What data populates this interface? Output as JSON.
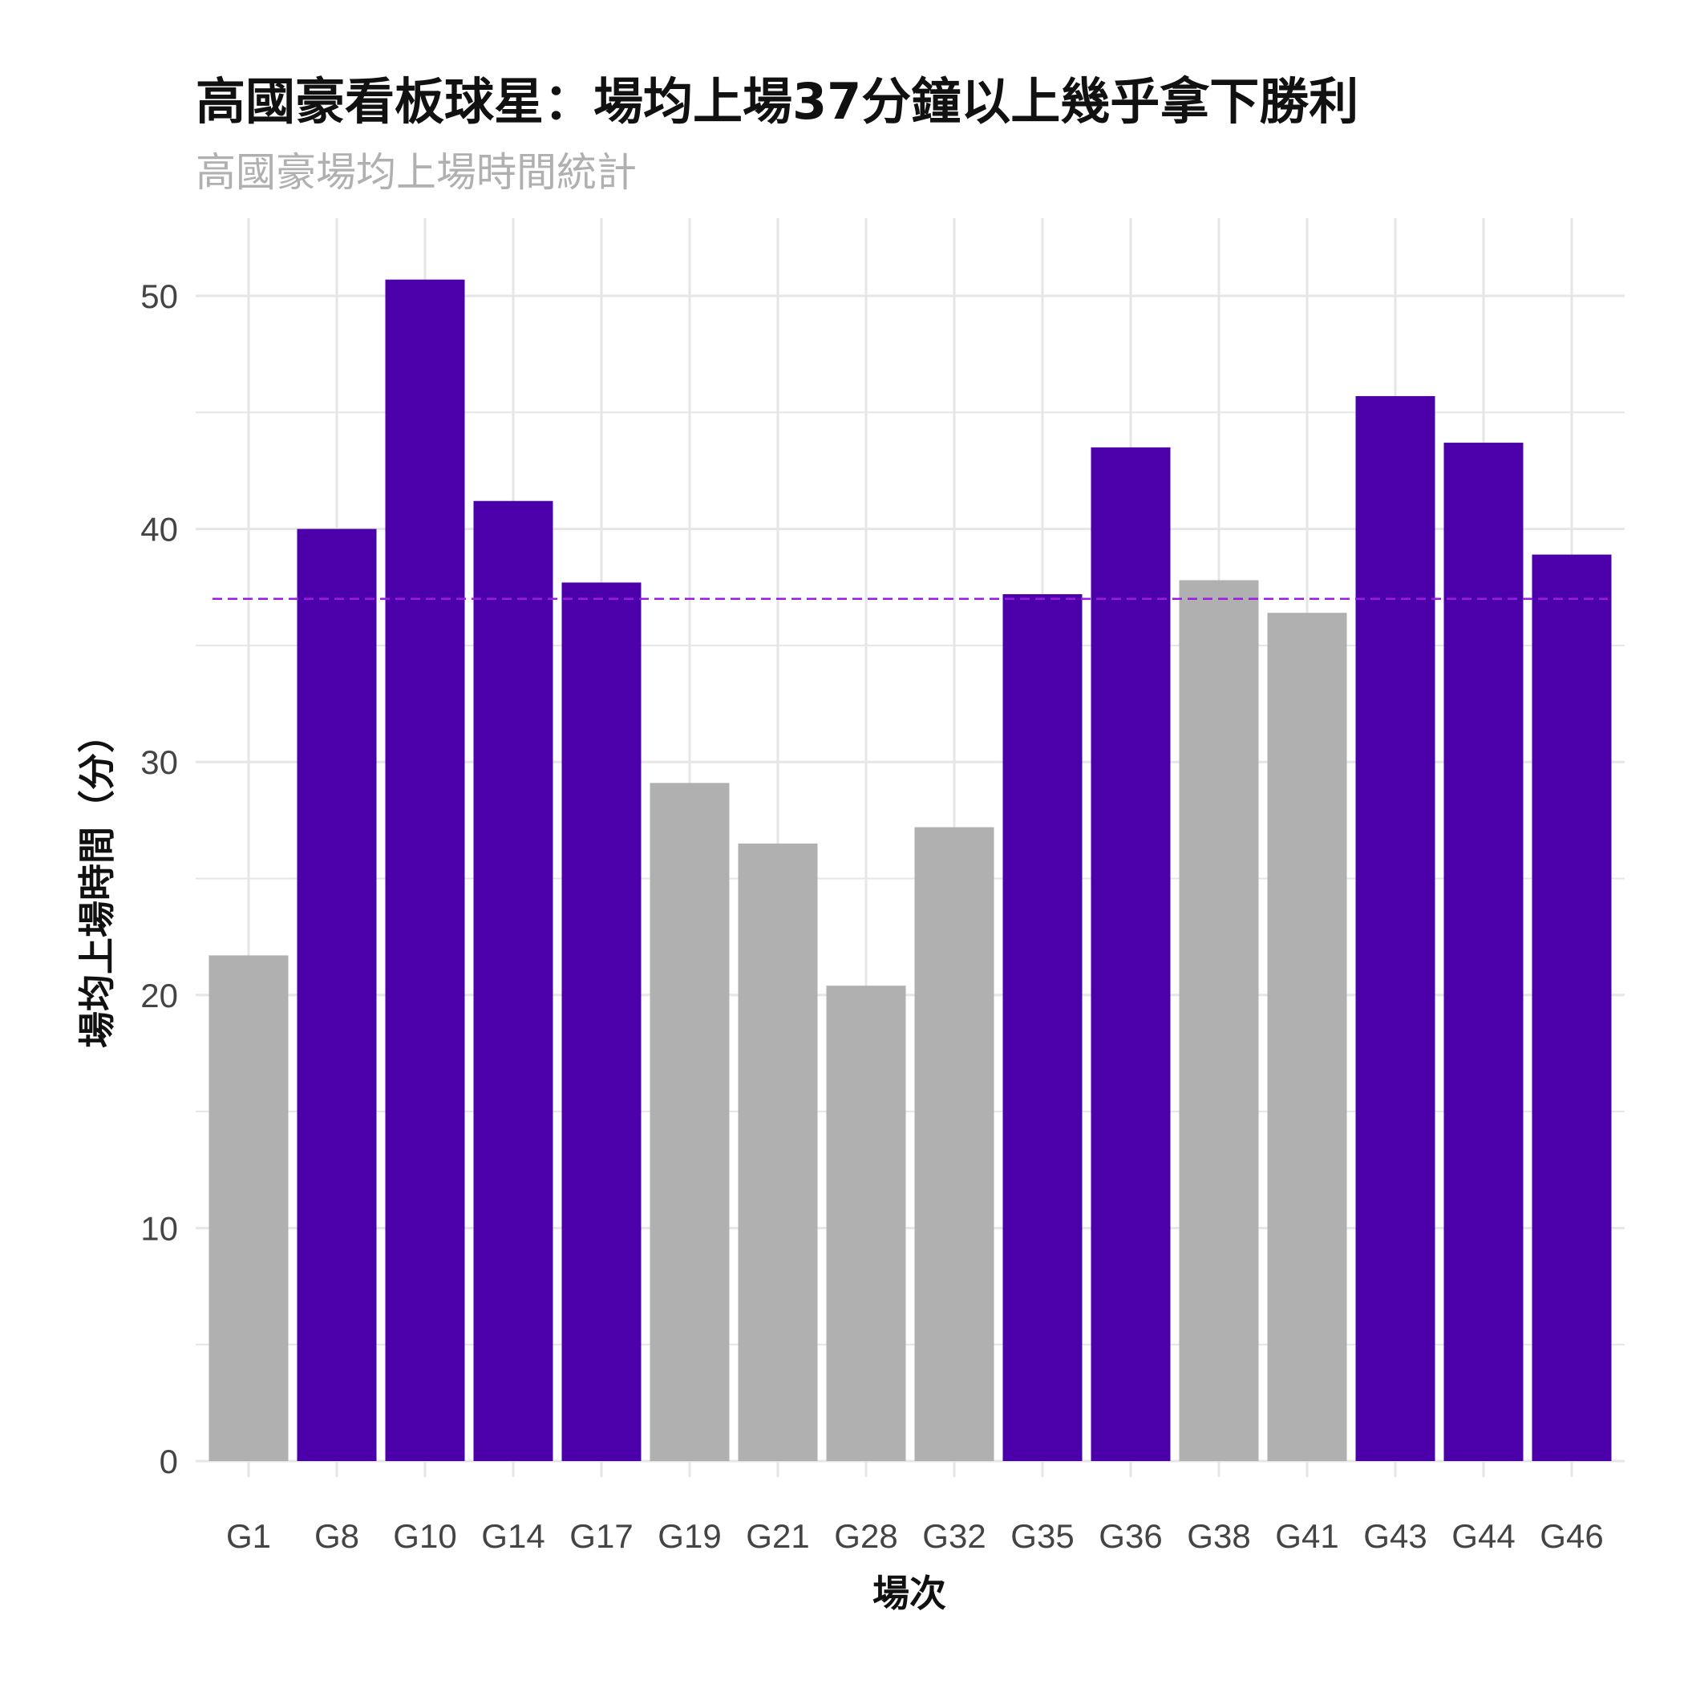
{
  "chart_data": {
    "type": "bar",
    "title": "高國豪看板球星：場均上場37分鐘以上幾乎拿下勝利",
    "subtitle": "高國豪場均上場時間統計",
    "xlabel": "場次",
    "ylabel": "場均上場時間（分）",
    "categories": [
      "G1",
      "G8",
      "G10",
      "G14",
      "G17",
      "G19",
      "G21",
      "G28",
      "G32",
      "G35",
      "G36",
      "G38",
      "G41",
      "G43",
      "G44",
      "G46"
    ],
    "values": [
      21.7,
      40.0,
      50.7,
      41.2,
      37.7,
      29.1,
      26.5,
      20.4,
      27.2,
      37.2,
      43.5,
      37.8,
      36.4,
      45.7,
      43.7,
      38.9
    ],
    "highlight": [
      false,
      true,
      true,
      true,
      true,
      false,
      false,
      false,
      false,
      true,
      true,
      false,
      false,
      true,
      true,
      true
    ],
    "ylim": [
      0,
      52
    ],
    "yticks": [
      0,
      10,
      20,
      30,
      40,
      50
    ],
    "reference_line": 37,
    "grid": true,
    "colors": {
      "highlight": "#4b00aa",
      "normal": "#b0b0b0",
      "reference_line": "#9b1ce0",
      "grid": "#e6e6e6"
    }
  }
}
